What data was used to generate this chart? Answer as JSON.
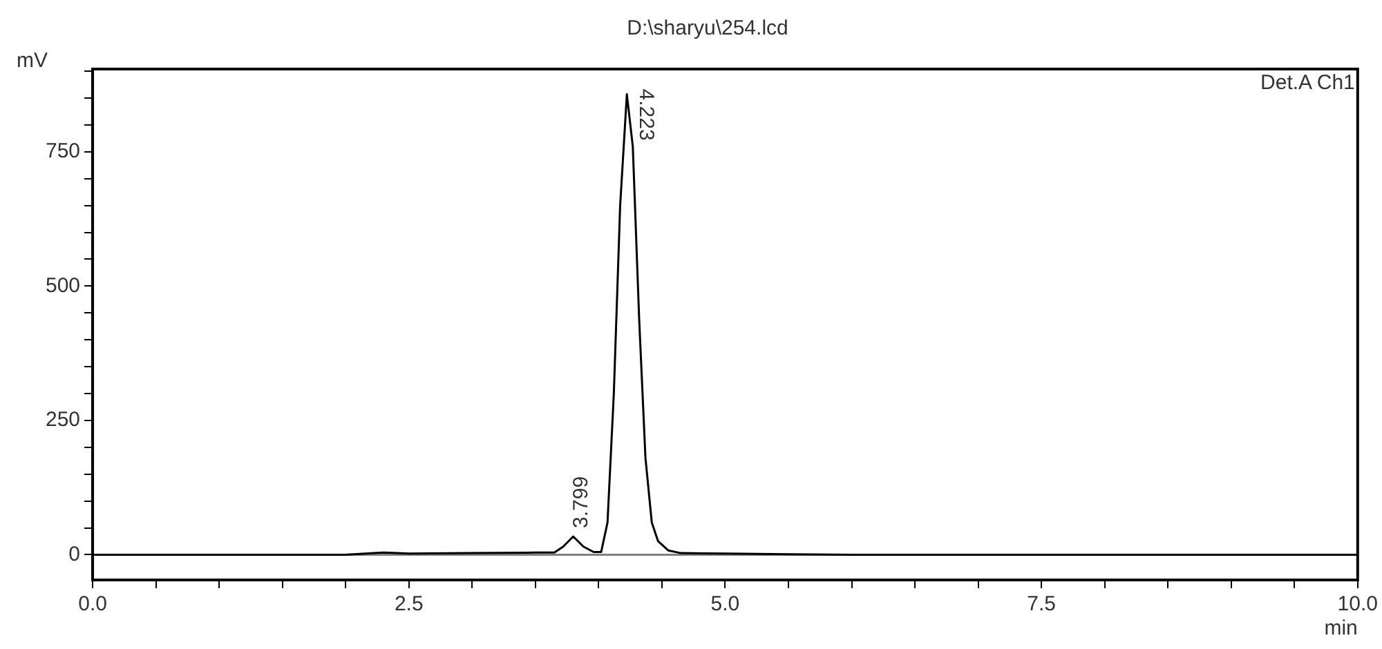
{
  "chart_data": {
    "type": "line",
    "title": "D:\\sharyu\\254.lcd",
    "xlabel": "min",
    "ylabel": "mV",
    "x": [
      0,
      1,
      2,
      2.3,
      2.5,
      3,
      3.5,
      3.65,
      3.72,
      3.799,
      3.88,
      3.96,
      4.02,
      4.07,
      4.12,
      4.17,
      4.223,
      4.27,
      4.32,
      4.37,
      4.42,
      4.47,
      4.55,
      4.65,
      5,
      5.5,
      6,
      8,
      10
    ],
    "series": [
      {
        "color": "#000000",
        "values": [
          0,
          0,
          0,
          4,
          2,
          3,
          4,
          4,
          15,
          34,
          15,
          5,
          5,
          60,
          300,
          650,
          857,
          760,
          440,
          180,
          60,
          25,
          8,
          3,
          2,
          1,
          0,
          0,
          0
        ]
      }
    ],
    "xlim": [
      0,
      10
    ],
    "ylim": [
      -47,
      904
    ],
    "xticks": [
      {
        "value": 0,
        "label": "0.0"
      },
      {
        "value": 0.5,
        "label": null
      },
      {
        "value": 1,
        "label": null
      },
      {
        "value": 1.5,
        "label": null
      },
      {
        "value": 2,
        "label": null
      },
      {
        "value": 2.5,
        "label": "2.5"
      },
      {
        "value": 3,
        "label": null
      },
      {
        "value": 3.5,
        "label": null
      },
      {
        "value": 4,
        "label": null
      },
      {
        "value": 4.5,
        "label": null
      },
      {
        "value": 5,
        "label": "5.0"
      },
      {
        "value": 5.5,
        "label": null
      },
      {
        "value": 6,
        "label": null
      },
      {
        "value": 6.5,
        "label": null
      },
      {
        "value": 7,
        "label": null
      },
      {
        "value": 7.5,
        "label": "7.5"
      },
      {
        "value": 8,
        "label": null
      },
      {
        "value": 8.5,
        "label": null
      },
      {
        "value": 9,
        "label": null
      },
      {
        "value": 9.5,
        "label": null
      },
      {
        "value": 10,
        "label": "10.0"
      }
    ],
    "yticks": [
      0,
      {
        "value": 50,
        "label": null
      },
      {
        "value": 100,
        "label": null
      },
      {
        "value": 150,
        "label": null
      },
      {
        "value": 200,
        "label": null
      },
      250,
      {
        "value": 300,
        "label": null
      },
      {
        "value": 350,
        "label": null
      },
      {
        "value": 400,
        "label": null
      },
      {
        "value": 450,
        "label": null
      },
      500,
      {
        "value": 550,
        "label": null
      },
      {
        "value": 600,
        "label": null
      },
      {
        "value": 650,
        "label": null
      },
      {
        "value": 700,
        "label": null
      },
      750,
      {
        "value": 800,
        "label": null
      },
      {
        "value": 850,
        "label": null
      },
      {
        "value": 900,
        "label": null
      }
    ],
    "ref_lines": [
      {
        "axis": "y",
        "value": 0,
        "color": "#808080"
      }
    ],
    "annotations": [
      {
        "text": "4.223",
        "x": 4.223,
        "y": 857
      },
      {
        "text": "3.799",
        "x": 3.799,
        "y": 34
      },
      "Det.A Ch1"
    ],
    "grid": false,
    "legend": false,
    "marker": "none",
    "line_style": "solid"
  }
}
